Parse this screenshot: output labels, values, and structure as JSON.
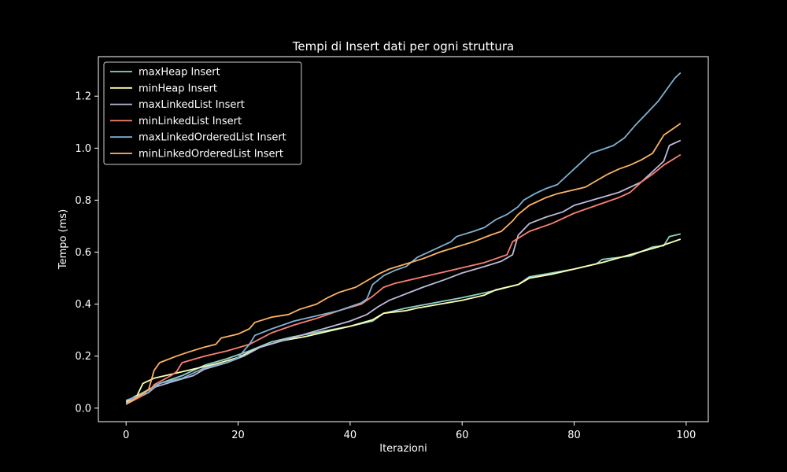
{
  "chart_data": {
    "type": "line",
    "title": "Tempi di Insert dati per ogni struttura",
    "xlabel": "Iterazioni",
    "ylabel": "Tempo (ms)",
    "xlim": [
      -4.95,
      103.95
    ],
    "ylim": [
      -0.052,
      1.352
    ],
    "xticks": [
      0,
      20,
      40,
      60,
      80,
      100
    ],
    "yticks": [
      0.0,
      0.2,
      0.4,
      0.6,
      0.8,
      1.0,
      1.2
    ],
    "xtick_labels": [
      "0",
      "20",
      "40",
      "60",
      "80",
      "100"
    ],
    "ytick_labels": [
      "0.0",
      "0.2",
      "0.4",
      "0.6",
      "0.8",
      "1.0",
      "1.2"
    ],
    "grid": false,
    "legend_position": "top-left",
    "background": "#000000",
    "foreground": "#ffffff",
    "series": [
      {
        "name": "maxHeap Insert",
        "color": "#8dd3c7",
        "points": [
          [
            0,
            0.025
          ],
          [
            3,
            0.06
          ],
          [
            6,
            0.095
          ],
          [
            10,
            0.125
          ],
          [
            14,
            0.165
          ],
          [
            18,
            0.19
          ],
          [
            22,
            0.22
          ],
          [
            26,
            0.255
          ],
          [
            30,
            0.275
          ],
          [
            35,
            0.295
          ],
          [
            40,
            0.315
          ],
          [
            44,
            0.335
          ],
          [
            46,
            0.365
          ],
          [
            50,
            0.385
          ],
          [
            55,
            0.405
          ],
          [
            60,
            0.425
          ],
          [
            65,
            0.448
          ],
          [
            70,
            0.475
          ],
          [
            72,
            0.505
          ],
          [
            76,
            0.52
          ],
          [
            80,
            0.535
          ],
          [
            84,
            0.555
          ],
          [
            85,
            0.572
          ],
          [
            90,
            0.585
          ],
          [
            94,
            0.62
          ],
          [
            96,
            0.625
          ],
          [
            97,
            0.66
          ],
          [
            99,
            0.67
          ]
        ]
      },
      {
        "name": "minHeap Insert",
        "color": "#ffffb3",
        "points": [
          [
            0,
            0.025
          ],
          [
            2,
            0.05
          ],
          [
            3,
            0.095
          ],
          [
            5,
            0.115
          ],
          [
            8,
            0.13
          ],
          [
            12,
            0.15
          ],
          [
            16,
            0.17
          ],
          [
            20,
            0.195
          ],
          [
            24,
            0.235
          ],
          [
            28,
            0.26
          ],
          [
            32,
            0.275
          ],
          [
            36,
            0.295
          ],
          [
            40,
            0.315
          ],
          [
            44,
            0.34
          ],
          [
            46,
            0.365
          ],
          [
            50,
            0.375
          ],
          [
            52,
            0.385
          ],
          [
            56,
            0.4
          ],
          [
            60,
            0.415
          ],
          [
            64,
            0.435
          ],
          [
            66,
            0.455
          ],
          [
            70,
            0.475
          ],
          [
            72,
            0.5
          ],
          [
            76,
            0.515
          ],
          [
            80,
            0.535
          ],
          [
            85,
            0.56
          ],
          [
            90,
            0.59
          ],
          [
            95,
            0.62
          ],
          [
            99,
            0.65
          ]
        ]
      },
      {
        "name": "maxLinkedList Insert",
        "color": "#bebada",
        "points": [
          [
            0,
            0.02
          ],
          [
            4,
            0.06
          ],
          [
            5,
            0.08
          ],
          [
            8,
            0.1
          ],
          [
            12,
            0.125
          ],
          [
            14,
            0.15
          ],
          [
            18,
            0.175
          ],
          [
            21,
            0.2
          ],
          [
            24,
            0.235
          ],
          [
            28,
            0.26
          ],
          [
            32,
            0.285
          ],
          [
            36,
            0.31
          ],
          [
            40,
            0.335
          ],
          [
            43,
            0.36
          ],
          [
            45,
            0.39
          ],
          [
            47,
            0.415
          ],
          [
            50,
            0.44
          ],
          [
            53,
            0.465
          ],
          [
            57,
            0.495
          ],
          [
            60,
            0.52
          ],
          [
            64,
            0.545
          ],
          [
            67,
            0.565
          ],
          [
            69,
            0.59
          ],
          [
            70,
            0.665
          ],
          [
            72,
            0.71
          ],
          [
            75,
            0.735
          ],
          [
            78,
            0.755
          ],
          [
            80,
            0.78
          ],
          [
            84,
            0.805
          ],
          [
            88,
            0.83
          ],
          [
            92,
            0.87
          ],
          [
            94,
            0.91
          ],
          [
            96,
            0.95
          ],
          [
            97,
            1.01
          ],
          [
            99,
            1.03
          ]
        ]
      },
      {
        "name": "minLinkedList Insert",
        "color": "#fb8072",
        "points": [
          [
            0,
            0.015
          ],
          [
            4,
            0.06
          ],
          [
            5,
            0.09
          ],
          [
            8,
            0.125
          ],
          [
            9,
            0.14
          ],
          [
            10,
            0.175
          ],
          [
            14,
            0.2
          ],
          [
            18,
            0.22
          ],
          [
            22,
            0.245
          ],
          [
            26,
            0.29
          ],
          [
            30,
            0.32
          ],
          [
            34,
            0.345
          ],
          [
            38,
            0.375
          ],
          [
            42,
            0.4
          ],
          [
            44,
            0.43
          ],
          [
            46,
            0.465
          ],
          [
            48,
            0.48
          ],
          [
            52,
            0.5
          ],
          [
            56,
            0.52
          ],
          [
            60,
            0.54
          ],
          [
            64,
            0.56
          ],
          [
            68,
            0.59
          ],
          [
            69,
            0.64
          ],
          [
            72,
            0.68
          ],
          [
            76,
            0.71
          ],
          [
            80,
            0.75
          ],
          [
            84,
            0.78
          ],
          [
            88,
            0.81
          ],
          [
            90,
            0.83
          ],
          [
            92,
            0.87
          ],
          [
            94,
            0.9
          ],
          [
            96,
            0.935
          ],
          [
            99,
            0.975
          ]
        ]
      },
      {
        "name": "maxLinkedOrderedList Insert",
        "color": "#80b1d3",
        "points": [
          [
            0,
            0.03
          ],
          [
            4,
            0.06
          ],
          [
            6,
            0.095
          ],
          [
            10,
            0.115
          ],
          [
            14,
            0.155
          ],
          [
            18,
            0.175
          ],
          [
            20,
            0.195
          ],
          [
            22,
            0.245
          ],
          [
            23,
            0.28
          ],
          [
            26,
            0.305
          ],
          [
            30,
            0.335
          ],
          [
            34,
            0.355
          ],
          [
            38,
            0.375
          ],
          [
            42,
            0.405
          ],
          [
            43,
            0.42
          ],
          [
            44,
            0.475
          ],
          [
            46,
            0.51
          ],
          [
            48,
            0.53
          ],
          [
            50,
            0.545
          ],
          [
            52,
            0.58
          ],
          [
            56,
            0.62
          ],
          [
            58,
            0.64
          ],
          [
            59,
            0.66
          ],
          [
            62,
            0.68
          ],
          [
            64,
            0.695
          ],
          [
            66,
            0.725
          ],
          [
            68,
            0.745
          ],
          [
            70,
            0.775
          ],
          [
            71,
            0.8
          ],
          [
            73,
            0.825
          ],
          [
            75,
            0.845
          ],
          [
            77,
            0.86
          ],
          [
            79,
            0.9
          ],
          [
            81,
            0.94
          ],
          [
            83,
            0.98
          ],
          [
            85,
            0.995
          ],
          [
            87,
            1.01
          ],
          [
            89,
            1.04
          ],
          [
            91,
            1.09
          ],
          [
            93,
            1.135
          ],
          [
            95,
            1.18
          ],
          [
            97,
            1.24
          ],
          [
            98,
            1.27
          ],
          [
            99,
            1.29
          ]
        ]
      },
      {
        "name": "minLinkedOrderedList Insert",
        "color": "#fdb462",
        "points": [
          [
            0,
            0.015
          ],
          [
            4,
            0.07
          ],
          [
            5,
            0.145
          ],
          [
            6,
            0.175
          ],
          [
            9,
            0.2
          ],
          [
            11,
            0.215
          ],
          [
            14,
            0.235
          ],
          [
            16,
            0.245
          ],
          [
            17,
            0.27
          ],
          [
            20,
            0.285
          ],
          [
            22,
            0.305
          ],
          [
            23,
            0.33
          ],
          [
            26,
            0.35
          ],
          [
            29,
            0.36
          ],
          [
            31,
            0.38
          ],
          [
            34,
            0.4
          ],
          [
            36,
            0.425
          ],
          [
            38,
            0.445
          ],
          [
            41,
            0.465
          ],
          [
            43,
            0.49
          ],
          [
            45,
            0.515
          ],
          [
            47,
            0.535
          ],
          [
            50,
            0.555
          ],
          [
            53,
            0.575
          ],
          [
            56,
            0.6
          ],
          [
            59,
            0.62
          ],
          [
            62,
            0.64
          ],
          [
            65,
            0.665
          ],
          [
            67,
            0.68
          ],
          [
            69,
            0.72
          ],
          [
            70,
            0.745
          ],
          [
            72,
            0.78
          ],
          [
            75,
            0.81
          ],
          [
            77,
            0.825
          ],
          [
            80,
            0.84
          ],
          [
            82,
            0.85
          ],
          [
            84,
            0.875
          ],
          [
            86,
            0.9
          ],
          [
            88,
            0.92
          ],
          [
            90,
            0.935
          ],
          [
            92,
            0.955
          ],
          [
            94,
            0.98
          ],
          [
            96,
            1.05
          ],
          [
            98,
            1.08
          ],
          [
            99,
            1.095
          ]
        ]
      }
    ]
  }
}
